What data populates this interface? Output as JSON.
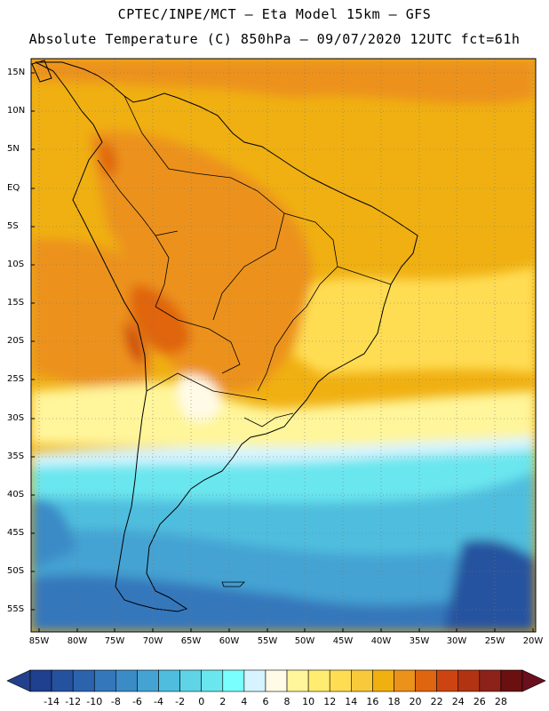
{
  "title_line1": "CPTEC/INPE/MCT –   Eta Model 15km – GFS",
  "title_line2": "Absolute Temperature (C) 850hPa – 09/07/2020 12UTC fct=61h",
  "map": {
    "variable": "Absolute Temperature",
    "units": "C",
    "level": "850hPa",
    "region": "South America",
    "lat_labels": [
      "15N",
      "10N",
      "5N",
      "EQ",
      "5S",
      "10S",
      "15S",
      "20S",
      "25S",
      "30S",
      "35S",
      "40S",
      "45S",
      "50S",
      "55S"
    ],
    "lon_labels": [
      "85W",
      "80W",
      "75W",
      "70W",
      "65W",
      "60W",
      "55W",
      "50W",
      "45W",
      "40W",
      "35W",
      "30W",
      "25W",
      "20W"
    ]
  },
  "colorbar": {
    "labels": [
      "-14",
      "-12",
      "-10",
      "-8",
      "-6",
      "-4",
      "-2",
      "0",
      "2",
      "4",
      "6",
      "8",
      "10",
      "12",
      "14",
      "16",
      "18",
      "20",
      "22",
      "24",
      "26",
      "28"
    ],
    "colors": [
      "#1f3f8f",
      "#25529f",
      "#2b63ad",
      "#3477bb",
      "#3a8bc6",
      "#44a3d3",
      "#4fbede",
      "#5fd4e6",
      "#6ae6ee",
      "#7affff",
      "#d5f4ff",
      "#fffbe6",
      "#fff59a",
      "#ffec70",
      "#ffdd52",
      "#f8c93a",
      "#f0b012",
      "#ec921a",
      "#e06510",
      "#cc4411",
      "#b23312",
      "#8c2218",
      "#6a1010"
    ],
    "low_color": "#22408c",
    "high_color": "#6a0f1c"
  }
}
